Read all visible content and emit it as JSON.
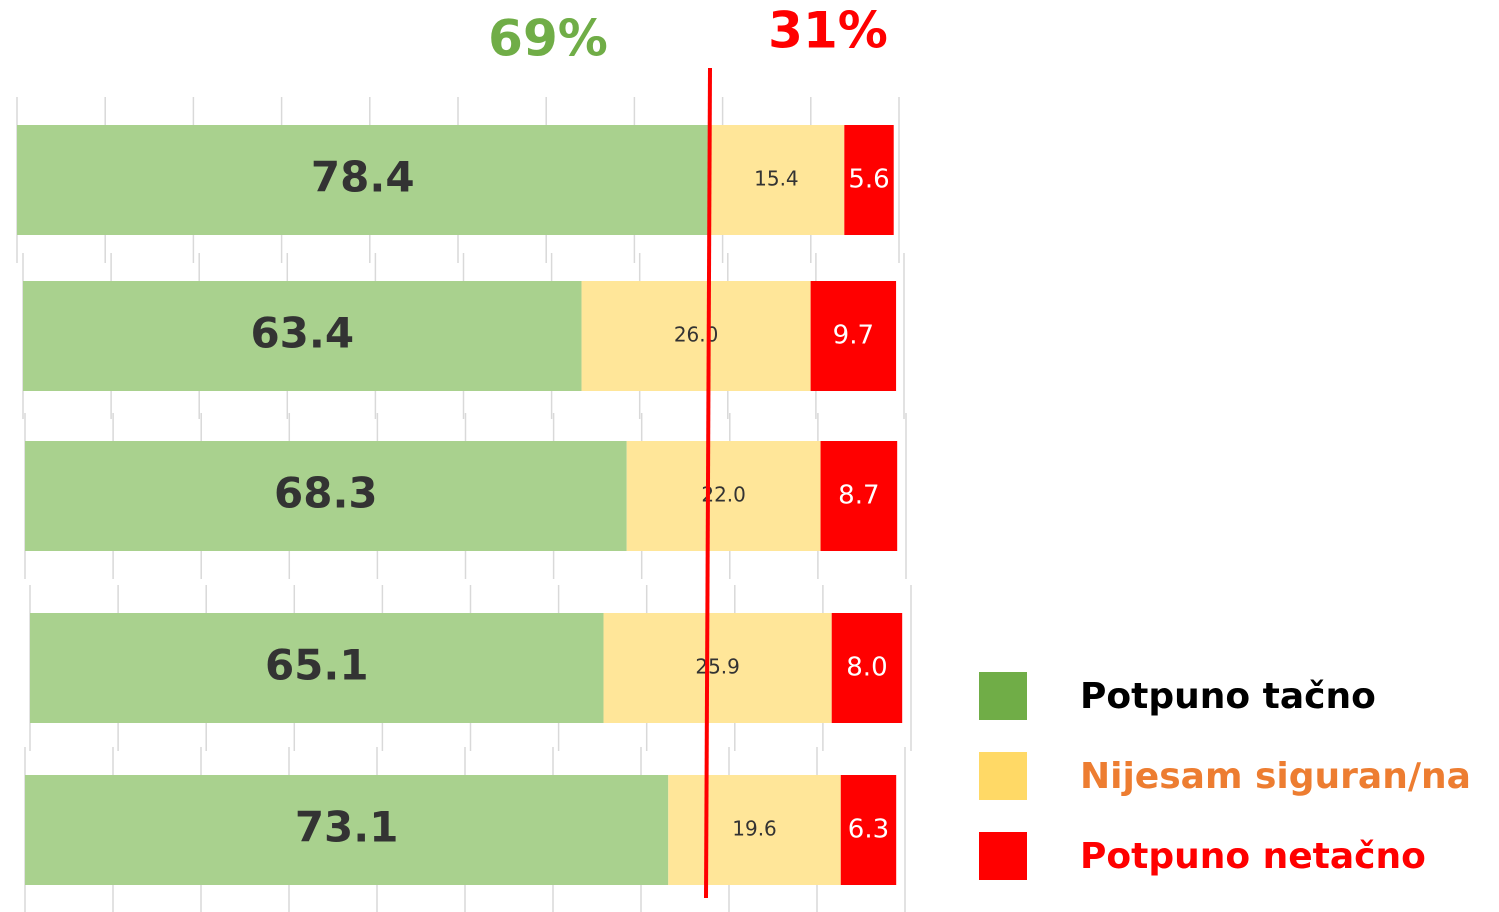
{
  "chart_data": {
    "type": "stacked-bar-horizontal",
    "annotations": [
      "69%",
      "31%"
    ],
    "categories": [
      null,
      null,
      null,
      null,
      null
    ],
    "xlim": [
      0,
      100
    ],
    "xticks": [
      0,
      10,
      20,
      30,
      40,
      50,
      60,
      70,
      80,
      90,
      100
    ],
    "grid": true,
    "legend": "right",
    "series": [
      {
        "name": "Potpuno tačno",
        "color": "#a9d18e",
        "legend_color": "#70ad47",
        "values": [
          78.4,
          63.4,
          68.3,
          65.1,
          73.1
        ],
        "value_labels": [
          "78.4",
          "63.4",
          "68.3",
          "65.1",
          "73.1"
        ]
      },
      {
        "name": "Nijesam siguran/na",
        "color": "#ffe699",
        "legend_color": "#ffd966",
        "values": [
          15.4,
          26.0,
          22.0,
          25.9,
          19.6
        ],
        "value_labels": [
          "15.4",
          "26.0",
          "22.0",
          "25.9",
          "19.6"
        ]
      },
      {
        "name": "Potpuno netačno",
        "color": "#ff0000",
        "legend_color": "#ff0000",
        "values": [
          5.6,
          9.7,
          8.7,
          8.0,
          6.3
        ],
        "value_labels": [
          "5.6",
          "9.7",
          "8.7",
          "8.0",
          "6.3"
        ]
      }
    ]
  }
}
